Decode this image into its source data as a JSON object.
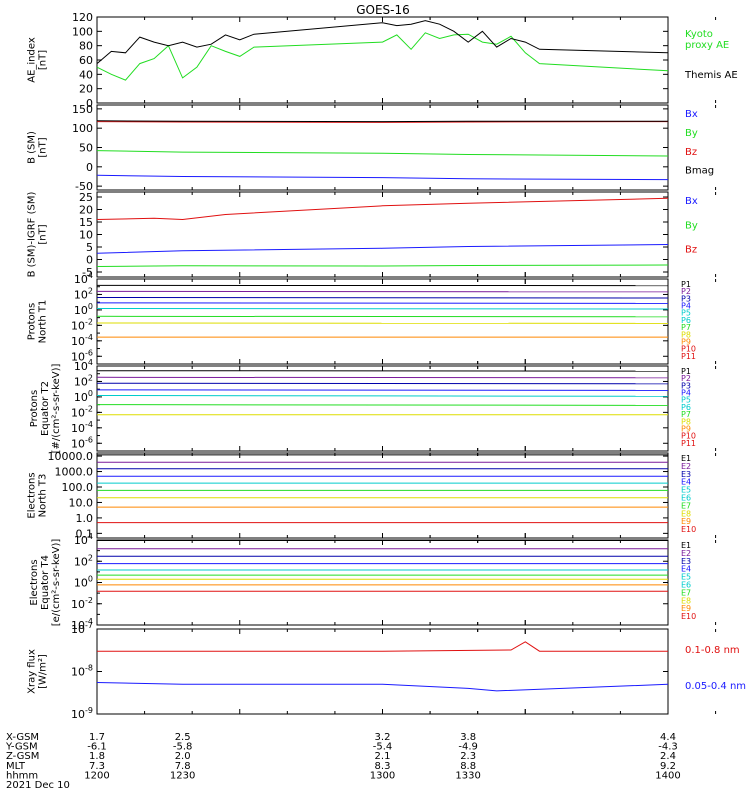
{
  "title": "GOES-16",
  "colors": {
    "black": "#000000",
    "green": "#22dd22",
    "blue": "#1a1aff",
    "red": "#e01010",
    "cyan": "#00cccc",
    "purple": "#7a1a9a",
    "yellow": "#dddd00",
    "orange": "#ff8800",
    "navy": "#0000aa"
  },
  "chart_data": [
    {
      "type": "line",
      "id": "ae",
      "ylabel": [
        "AE_index",
        "[nT]"
      ],
      "ylim": [
        0,
        120
      ],
      "yticks": [
        "120",
        "100",
        "80",
        "60",
        "40",
        "20",
        "0"
      ],
      "ytick_values": [
        120,
        100,
        80,
        60,
        40,
        20,
        0
      ],
      "series": [
        {
          "name": "Kyoto proxy AE",
          "color": "green",
          "x": [
            1200,
            1205,
            1210,
            1215,
            1220,
            1225,
            1230,
            1235,
            1240,
            1245,
            1250,
            1255,
            1300,
            1305,
            1310,
            1315,
            1320,
            1325,
            1330,
            1335,
            1340,
            1345,
            1350,
            1355,
            1400
          ],
          "values": [
            50,
            40,
            32,
            55,
            62,
            80,
            35,
            50,
            80,
            72,
            65,
            78,
            85,
            95,
            75,
            98,
            90,
            95,
            96,
            85,
            82,
            93,
            70,
            55,
            45
          ]
        },
        {
          "name": "Themis AE",
          "color": "black",
          "x": [
            1200,
            1205,
            1210,
            1215,
            1220,
            1225,
            1230,
            1235,
            1240,
            1245,
            1250,
            1255,
            1300,
            1305,
            1310,
            1315,
            1320,
            1325,
            1330,
            1335,
            1340,
            1345,
            1350,
            1355,
            1400
          ],
          "values": [
            55,
            72,
            70,
            92,
            85,
            80,
            85,
            78,
            82,
            95,
            88,
            96,
            112,
            108,
            110,
            115,
            110,
            100,
            85,
            100,
            78,
            90,
            85,
            75,
            70
          ]
        }
      ],
      "legend": [
        {
          "label": "Kyoto",
          "color": "green"
        },
        {
          "label": "proxy AE",
          "color": "green"
        },
        {
          "label": "Themis AE",
          "color": "black"
        }
      ]
    },
    {
      "type": "line",
      "id": "bsm",
      "ylabel": [
        "B (SM)",
        "[nT]"
      ],
      "ylim": [
        -60,
        160
      ],
      "yticks": [
        "150",
        "100",
        "50",
        "0",
        "-50"
      ],
      "ytick_values": [
        150,
        100,
        50,
        0,
        -50
      ],
      "series": [
        {
          "name": "Bx",
          "color": "blue",
          "x": [
            1200,
            1230,
            1300,
            1330,
            1400
          ],
          "values": [
            -22,
            -25,
            -28,
            -31,
            -33
          ]
        },
        {
          "name": "By",
          "color": "green",
          "x": [
            1200,
            1230,
            1300,
            1330,
            1400
          ],
          "values": [
            42,
            38,
            35,
            32,
            28
          ]
        },
        {
          "name": "Bz",
          "color": "red",
          "x": [
            1200,
            1230,
            1300,
            1330,
            1400
          ],
          "values": [
            117,
            116,
            115,
            116,
            117
          ]
        },
        {
          "name": "Bmag",
          "color": "black",
          "x": [
            1200,
            1230,
            1300,
            1330,
            1400
          ],
          "values": [
            119,
            118,
            117,
            118,
            118
          ]
        }
      ],
      "legend": [
        {
          "label": "Bx",
          "color": "blue"
        },
        {
          "label": "By",
          "color": "green"
        },
        {
          "label": "Bz",
          "color": "red"
        },
        {
          "label": "Bmag",
          "color": "black"
        }
      ]
    },
    {
      "type": "line",
      "id": "bdiff",
      "ylabel": [
        "B (SM)-IGRF (SM)",
        "[nT]"
      ],
      "ylim": [
        -7,
        27
      ],
      "yticks": [
        "25",
        "20",
        "15",
        "10",
        "5",
        "0",
        "-5"
      ],
      "ytick_values": [
        25,
        20,
        15,
        10,
        5,
        0,
        -5
      ],
      "series": [
        {
          "name": "Bx",
          "color": "blue",
          "x": [
            1200,
            1230,
            1300,
            1330,
            1400
          ],
          "values": [
            2.5,
            3.5,
            4.5,
            5.2,
            6
          ]
        },
        {
          "name": "By",
          "color": "green",
          "x": [
            1200,
            1230,
            1300,
            1330,
            1400
          ],
          "values": [
            -2.8,
            -2.5,
            -2.6,
            -2.4,
            -2.2
          ]
        },
        {
          "name": "Bz",
          "color": "red",
          "x": [
            1200,
            1220,
            1230,
            1245,
            1300,
            1330,
            1400
          ],
          "values": [
            16,
            16.5,
            16,
            18,
            21.5,
            22.5,
            24.5
          ]
        }
      ],
      "legend": [
        {
          "label": "Bx",
          "color": "blue"
        },
        {
          "label": "By",
          "color": "green"
        },
        {
          "label": "Bz",
          "color": "red"
        }
      ]
    },
    {
      "type": "line",
      "id": "pnorth",
      "ylog": true,
      "ylabel": [
        "Protons",
        "North T1"
      ],
      "ylim_exp": [
        -7,
        4
      ],
      "yticks_exp": [
        4,
        2,
        0,
        -2,
        -4,
        -6
      ],
      "series": [
        {
          "name": "P1",
          "color": "black",
          "values": [
            1500,
            1400
          ]
        },
        {
          "name": "P2",
          "color": "purple",
          "values": [
            250,
            220
          ]
        },
        {
          "name": "P3",
          "color": "navy",
          "values": [
            40,
            35
          ]
        },
        {
          "name": "P4",
          "color": "blue",
          "values": [
            8,
            7
          ]
        },
        {
          "name": "P5",
          "color": "cyan",
          "values": [
            1.5,
            1.3
          ]
        },
        {
          "name": "P6",
          "color": "green",
          "values": [
            0.15,
            0.13
          ]
        },
        {
          "name": "P7",
          "color": "yellow",
          "values": [
            0.02,
            0.018
          ]
        },
        {
          "name": "P8",
          "color": "orange",
          "values": [
            0.0003,
            0.0003
          ]
        }
      ],
      "legend": [
        "P1",
        "P2",
        "P3",
        "P4",
        "P5",
        "P6",
        "P7",
        "P8",
        "P9",
        "P10",
        "P11"
      ],
      "legend_colors": [
        "black",
        "purple",
        "navy",
        "blue",
        "cyan",
        "cyan",
        "green",
        "yellow",
        "orange",
        "red",
        "red"
      ]
    },
    {
      "type": "line",
      "id": "peq",
      "ylog": true,
      "ylabel": [
        "Protons",
        "Equator T2",
        "[#/(cm²-s-sr-keV)]"
      ],
      "ylim_exp": [
        -7,
        4
      ],
      "yticks_exp": [
        4,
        2,
        0,
        -2,
        -4,
        -6
      ],
      "series": [
        {
          "name": "P1",
          "color": "black",
          "values": [
            2500,
            2200
          ]
        },
        {
          "name": "P2",
          "color": "purple",
          "values": [
            350,
            300
          ]
        },
        {
          "name": "P3",
          "color": "navy",
          "values": [
            60,
            50
          ]
        },
        {
          "name": "P4",
          "color": "blue",
          "values": [
            8,
            7
          ]
        },
        {
          "name": "P5",
          "color": "cyan",
          "values": [
            1.5,
            1.2
          ]
        },
        {
          "name": "P6",
          "color": "green",
          "values": [
            0.1,
            0.08
          ]
        },
        {
          "name": "P7",
          "color": "yellow",
          "values": [
            0.005,
            0.005
          ]
        }
      ],
      "legend": [
        "P1",
        "P2",
        "P3",
        "P4",
        "P5",
        "P6",
        "P7",
        "P8",
        "P9",
        "P10",
        "P11"
      ],
      "legend_colors": [
        "black",
        "purple",
        "navy",
        "blue",
        "cyan",
        "cyan",
        "green",
        "yellow",
        "orange",
        "red",
        "red"
      ]
    },
    {
      "type": "line",
      "id": "enorth",
      "ylog": true,
      "ylabel": [
        "Electrons",
        "North T3"
      ],
      "ylim_exp": [
        -1.3,
        4.2
      ],
      "ytick_labels": [
        "10000.0",
        "1000.0",
        "100.0",
        "10.0",
        "1.0",
        "0.1"
      ],
      "ytick_exps": [
        4,
        3,
        2,
        1,
        0,
        -1
      ],
      "series": [
        {
          "name": "E1",
          "color": "black",
          "values": [
            12000,
            12000
          ]
        },
        {
          "name": "E2",
          "color": "purple",
          "values": [
            4000,
            4000
          ]
        },
        {
          "name": "E3",
          "color": "navy",
          "values": [
            1500,
            1500
          ]
        },
        {
          "name": "E4",
          "color": "blue",
          "values": [
            500,
            500
          ]
        },
        {
          "name": "E5",
          "color": "cyan",
          "values": [
            180,
            180
          ]
        },
        {
          "name": "E6",
          "color": "green",
          "values": [
            60,
            60
          ]
        },
        {
          "name": "E7",
          "color": "yellow",
          "values": [
            20,
            20
          ]
        },
        {
          "name": "E8",
          "color": "orange",
          "values": [
            5,
            5
          ]
        },
        {
          "name": "E9",
          "color": "red",
          "values": [
            0.5,
            0.5
          ]
        }
      ],
      "legend": [
        "E1",
        "E2",
        "E3",
        "E4",
        "E5",
        "E6",
        "E7",
        "E8",
        "E9",
        "E10"
      ],
      "legend_colors": [
        "black",
        "purple",
        "navy",
        "blue",
        "cyan",
        "cyan",
        "green",
        "yellow",
        "orange",
        "red"
      ]
    },
    {
      "type": "line",
      "id": "eeq",
      "ylog": true,
      "ylabel": [
        "Electrons",
        "Equator T4",
        "[e/(cm²-s-sr-keV)]"
      ],
      "ylim_exp": [
        -4,
        4
      ],
      "yticks_exp": [
        4,
        2,
        0,
        -2,
        -4
      ],
      "series": [
        {
          "name": "E1",
          "color": "black",
          "values": [
            9000,
            9000
          ]
        },
        {
          "name": "E2",
          "color": "purple",
          "values": [
            1500,
            1500
          ]
        },
        {
          "name": "E3",
          "color": "navy",
          "values": [
            300,
            300
          ]
        },
        {
          "name": "E4",
          "color": "blue",
          "values": [
            60,
            60
          ]
        },
        {
          "name": "E5",
          "color": "cyan",
          "values": [
            15,
            15
          ]
        },
        {
          "name": "E6",
          "color": "green",
          "values": [
            5,
            5
          ]
        },
        {
          "name": "E7",
          "color": "yellow",
          "values": [
            2,
            2
          ]
        },
        {
          "name": "E8",
          "color": "orange",
          "values": [
            0.6,
            0.6
          ]
        },
        {
          "name": "E9",
          "color": "red",
          "values": [
            0.15,
            0.15
          ]
        }
      ],
      "legend": [
        "E1",
        "E2",
        "E3",
        "E4",
        "E5",
        "E6",
        "E7",
        "E8",
        "E9",
        "E10"
      ],
      "legend_colors": [
        "black",
        "purple",
        "navy",
        "blue",
        "cyan",
        "cyan",
        "green",
        "yellow",
        "orange",
        "red"
      ]
    },
    {
      "type": "line",
      "id": "xray",
      "ylog": true,
      "ylabel": [
        "Xray flux",
        "[W/m²]"
      ],
      "ylim_exp": [
        -9,
        -7
      ],
      "yticks_exp": [
        -7,
        -8,
        -9
      ],
      "series": [
        {
          "name": "0.1-0.8 nm",
          "color": "red",
          "x": [
            1200,
            1300,
            1345,
            1350,
            1355,
            1400
          ],
          "values": [
            3e-08,
            3e-08,
            3.2e-08,
            5e-08,
            3e-08,
            3e-08
          ]
        },
        {
          "name": "0.05-0.4 nm",
          "color": "blue",
          "x": [
            1200,
            1230,
            1300,
            1330,
            1340,
            1400
          ],
          "values": [
            5.5e-09,
            5e-09,
            5e-09,
            4e-09,
            3.5e-09,
            5e-09
          ]
        }
      ],
      "legend": [
        {
          "label": "0.1-0.8 nm",
          "color": "red"
        },
        {
          "label": "0.05-0.4 nm",
          "color": "blue"
        }
      ]
    }
  ],
  "x_axis": {
    "range": [
      1200,
      1400
    ],
    "tick_values": [
      1200,
      1230,
      1300,
      1330,
      1400
    ],
    "rows": [
      {
        "name": "X-GSM",
        "values": [
          "1.7",
          "2.5",
          "3.2",
          "3.8",
          "4.4"
        ]
      },
      {
        "name": "Y-GSM",
        "values": [
          "-6.1",
          "-5.8",
          "-5.4",
          "-4.9",
          "-4.3"
        ]
      },
      {
        "name": "Z-GSM",
        "values": [
          "1.8",
          "2.0",
          "2.1",
          "2.3",
          "2.4"
        ]
      },
      {
        "name": "MLT",
        "values": [
          "7.3",
          "7.8",
          "8.3",
          "8.8",
          "9.2"
        ]
      },
      {
        "name": "hhmm",
        "values": [
          "1200",
          "1230",
          "1300",
          "1330",
          "1400"
        ]
      }
    ],
    "date": "2021 Dec 10"
  }
}
